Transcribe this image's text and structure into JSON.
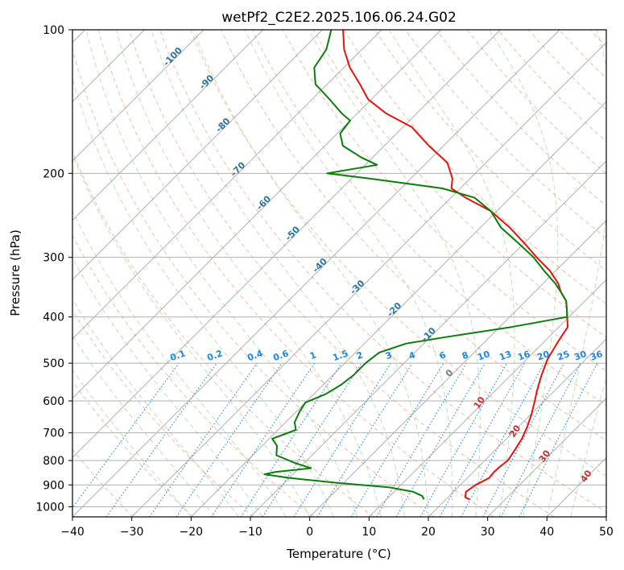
{
  "chart_data": {
    "type": "line",
    "subtype": "skew-t log-p",
    "title": "wetPf2_C2E2.2025.106.06.24.G02",
    "xlabel": "Temperature (°C)",
    "ylabel": "Pressure (hPa)",
    "xlim": [
      -40,
      50
    ],
    "ylim": [
      1050,
      100
    ],
    "y_scale": "log",
    "grid": true,
    "x_ticks": [
      "−40",
      "−30",
      "−20",
      "−10",
      "0",
      "10",
      "20",
      "30",
      "40",
      "50"
    ],
    "y_ticks": [
      "100",
      "200",
      "300",
      "400",
      "500",
      "600",
      "700",
      "800",
      "900",
      "1000"
    ],
    "colors": {
      "temperature": "#e8120c",
      "dewpoint": "#0b7d0b",
      "dry_adiabat": "#f2a487",
      "moist_adiabat": "#9fd49a",
      "mixing_ratio": "#1f86e0",
      "isotherm": "#8c8c8c",
      "isotherm_label": "#2a72a8",
      "dry_adiabat_label": "#c8322e"
    },
    "series": [
      {
        "role": "temperature",
        "points": [
          [
            24.0,
            965
          ],
          [
            22.9,
            955
          ],
          [
            22.1,
            930
          ],
          [
            22.6,
            900
          ],
          [
            23.7,
            870
          ],
          [
            23.5,
            845
          ],
          [
            23.6,
            825
          ],
          [
            23.9,
            800
          ],
          [
            23.3,
            760
          ],
          [
            22.6,
            720
          ],
          [
            21.5,
            680
          ],
          [
            20.1,
            640
          ],
          [
            18.4,
            600
          ],
          [
            17.0,
            570
          ],
          [
            15.2,
            530
          ],
          [
            13.5,
            490
          ],
          [
            12.3,
            450
          ],
          [
            11.5,
            420
          ],
          [
            9.7,
            400
          ],
          [
            8.3,
            385
          ],
          [
            6.8,
            370
          ],
          [
            4.5,
            355
          ],
          [
            2.5,
            340
          ],
          [
            -1.0,
            320
          ],
          [
            -5.5,
            300
          ],
          [
            -10.0,
            280
          ],
          [
            -15.0,
            260
          ],
          [
            -21.0,
            240
          ],
          [
            -27.5,
            225
          ],
          [
            -31.5,
            215
          ],
          [
            -33.0,
            205
          ],
          [
            -36.5,
            190
          ],
          [
            -42.5,
            175
          ],
          [
            -48.5,
            160
          ],
          [
            -55.0,
            150
          ],
          [
            -60.5,
            140
          ],
          [
            -64.5,
            130
          ],
          [
            -69.0,
            120
          ],
          [
            -73.0,
            110
          ],
          [
            -76.5,
            100
          ]
        ]
      },
      {
        "role": "dewpoint",
        "points": [
          [
            16.3,
            965
          ],
          [
            15.5,
            950
          ],
          [
            13.2,
            930
          ],
          [
            8.3,
            910
          ],
          [
            -1.5,
            890
          ],
          [
            -10.0,
            870
          ],
          [
            -14.8,
            855
          ],
          [
            -13.3,
            845
          ],
          [
            -8.0,
            830
          ],
          [
            -11.5,
            810
          ],
          [
            -16.0,
            780
          ],
          [
            -17.5,
            745
          ],
          [
            -19.5,
            720
          ],
          [
            -17.0,
            690
          ],
          [
            -18.5,
            665
          ],
          [
            -19.5,
            630
          ],
          [
            -20.0,
            605
          ],
          [
            -18.0,
            580
          ],
          [
            -17.0,
            555
          ],
          [
            -16.5,
            530
          ],
          [
            -16.5,
            500
          ],
          [
            -16.0,
            475
          ],
          [
            -13.0,
            455
          ],
          [
            -7.0,
            440
          ],
          [
            2.0,
            420
          ],
          [
            9.7,
            400
          ],
          [
            8.3,
            385
          ],
          [
            6.8,
            370
          ],
          [
            4.5,
            355
          ],
          [
            2.0,
            340
          ],
          [
            -2.0,
            320
          ],
          [
            -6.0,
            300
          ],
          [
            -11.0,
            280
          ],
          [
            -16.5,
            260
          ],
          [
            -21.0,
            240
          ],
          [
            -26.0,
            225
          ],
          [
            -33.0,
            215
          ],
          [
            -47.0,
            205
          ],
          [
            -55.0,
            200
          ],
          [
            -48.0,
            192
          ],
          [
            -52.0,
            185
          ],
          [
            -57.0,
            175
          ],
          [
            -59.5,
            165
          ],
          [
            -60.0,
            155
          ],
          [
            -62.5,
            150
          ],
          [
            -67.0,
            140
          ],
          [
            -72.0,
            130
          ],
          [
            -75.0,
            120
          ],
          [
            -76.0,
            110
          ],
          [
            -78.5,
            100
          ]
        ]
      }
    ],
    "isotherm_labels": [
      "-100",
      "-90",
      "-80",
      "-70",
      "-60",
      "-50",
      "-40",
      "-30",
      "-20",
      "-10",
      "0",
      "10",
      "20",
      "30",
      "40"
    ],
    "dry_adiabat_labels": [
      "10",
      "20",
      "30",
      "40"
    ],
    "mixing_ratio_labels": [
      "0.1",
      "0.2",
      "0.4",
      "0.6",
      "1",
      "1.5",
      "2",
      "3",
      "4",
      "6",
      "8",
      "10",
      "13",
      "16",
      "20",
      "25",
      "30",
      "36"
    ]
  }
}
